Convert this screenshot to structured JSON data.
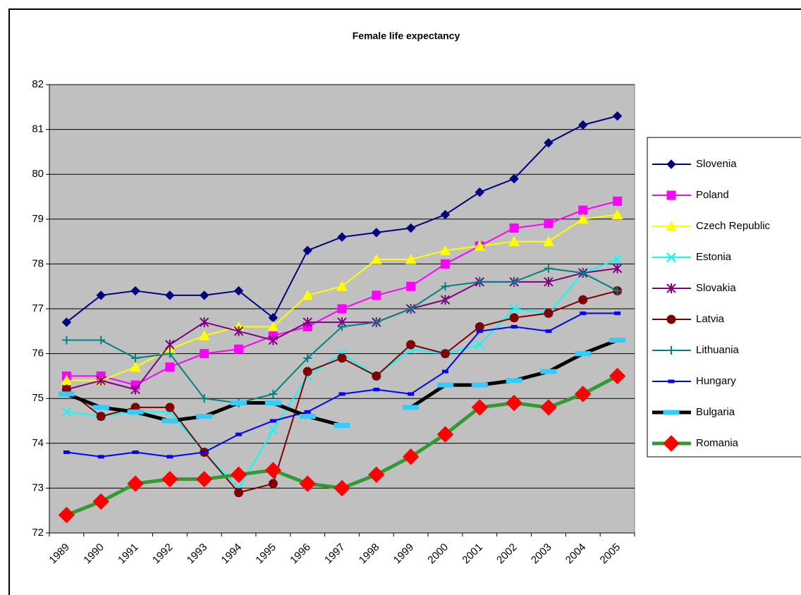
{
  "chart_data": {
    "type": "line",
    "title": "Female life expectancy",
    "categories": [
      "1989",
      "1990",
      "1991",
      "1992",
      "1993",
      "1994",
      "1995",
      "1996",
      "1997",
      "1998",
      "1999",
      "2000",
      "2001",
      "2002",
      "2003",
      "2004",
      "2005"
    ],
    "ylim": [
      72,
      82
    ],
    "yticks": [
      72,
      73,
      74,
      75,
      76,
      77,
      78,
      79,
      80,
      81,
      82
    ],
    "grid": true,
    "legend": "right",
    "background": "#c0c0c0",
    "series": [
      {
        "name": "Slovenia",
        "color": "#000080",
        "marker": "diamond",
        "values": [
          76.7,
          77.3,
          77.4,
          77.3,
          77.3,
          77.4,
          76.8,
          78.3,
          78.6,
          78.7,
          78.8,
          79.1,
          79.6,
          79.9,
          80.7,
          81.1,
          81.3
        ]
      },
      {
        "name": "Poland",
        "color": "#ff00ff",
        "marker": "square",
        "values": [
          75.5,
          75.5,
          75.3,
          75.7,
          76.0,
          76.1,
          76.4,
          76.6,
          77.0,
          77.3,
          77.5,
          78.0,
          78.4,
          78.8,
          78.9,
          79.2,
          79.4
        ]
      },
      {
        "name": "Czech Republic",
        "color": "#ffff00",
        "marker": "triangle",
        "values": [
          75.4,
          75.4,
          75.7,
          76.1,
          76.4,
          76.6,
          76.6,
          77.3,
          77.5,
          78.1,
          78.1,
          78.3,
          78.4,
          78.5,
          78.5,
          79.0,
          79.1
        ]
      },
      {
        "name": "Estonia",
        "color": "#00ffff",
        "marker": "x",
        "values": [
          74.7,
          74.6,
          74.7,
          74.7,
          73.8,
          73.0,
          74.3,
          75.5,
          76.0,
          75.5,
          76.1,
          76.0,
          76.2,
          77.0,
          76.9,
          77.8,
          78.1
        ]
      },
      {
        "name": "Slovakia",
        "color": "#800080",
        "marker": "star",
        "values": [
          75.2,
          75.4,
          75.2,
          76.2,
          76.7,
          76.5,
          76.3,
          76.7,
          76.7,
          76.7,
          77.0,
          77.2,
          77.6,
          77.6,
          77.6,
          77.8,
          77.9
        ]
      },
      {
        "name": "Latvia",
        "color": "#800000",
        "marker": "circle",
        "values": [
          75.2,
          74.6,
          74.8,
          74.8,
          73.8,
          72.9,
          73.1,
          75.6,
          75.9,
          75.5,
          76.2,
          76.0,
          76.6,
          76.8,
          76.9,
          77.2,
          77.4
        ]
      },
      {
        "name": "Lithuania",
        "color": "#008080",
        "marker": "plus",
        "values": [
          76.3,
          76.3,
          75.9,
          76.0,
          75.0,
          74.9,
          75.1,
          75.9,
          76.6,
          76.7,
          77.0,
          77.5,
          77.6,
          77.6,
          77.9,
          77.8,
          77.4
        ]
      },
      {
        "name": "Hungary",
        "color": "#0000ff",
        "marker": "dash",
        "values": [
          73.8,
          73.7,
          73.8,
          73.7,
          73.8,
          74.2,
          74.5,
          74.7,
          75.1,
          75.2,
          75.1,
          75.6,
          76.5,
          76.6,
          76.5,
          76.9,
          76.9
        ]
      },
      {
        "name": "Bulgaria",
        "color": "#000000",
        "marker": "bar",
        "marker_color": "#33ccff",
        "line_width": 5,
        "values": [
          75.1,
          74.8,
          74.7,
          74.5,
          74.6,
          74.9,
          74.9,
          74.6,
          74.4,
          null,
          74.8,
          75.3,
          75.3,
          75.4,
          75.6,
          76.0,
          76.3
        ]
      },
      {
        "name": "Romania",
        "color": "#339933",
        "marker": "bigdiamond",
        "marker_color": "#ff0000",
        "line_width": 5,
        "values": [
          72.4,
          72.7,
          73.1,
          73.2,
          73.2,
          73.3,
          73.4,
          73.1,
          73.0,
          73.3,
          73.7,
          74.2,
          74.8,
          74.9,
          74.8,
          75.1,
          75.5
        ]
      }
    ]
  }
}
